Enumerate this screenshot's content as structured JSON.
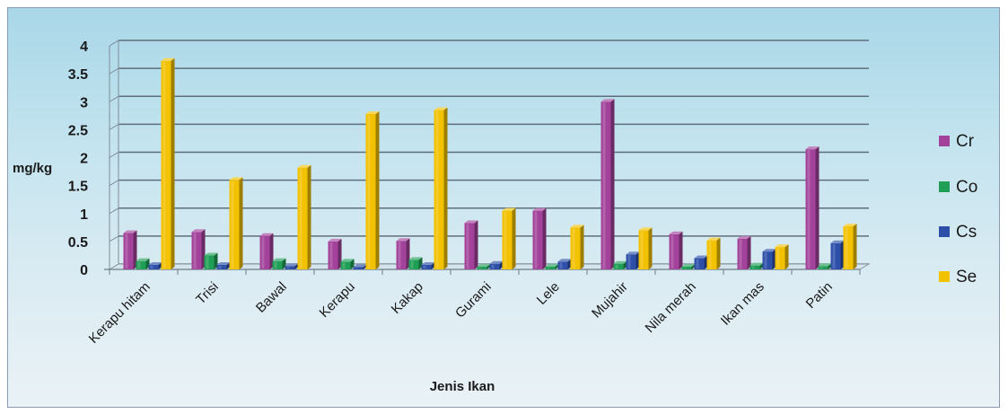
{
  "chart_data": {
    "type": "bar",
    "title": "",
    "xlabel": "Jenis Ikan",
    "ylabel": "mg/kg",
    "ylim": [
      0,
      4
    ],
    "yticks": [
      "0",
      "0.5",
      "1",
      "1.5",
      "2",
      "2.5",
      "3",
      "3.5",
      "4"
    ],
    "grid": true,
    "legend_position": "right",
    "categories": [
      "Kerapu hitam",
      "Trisi",
      "Bawal",
      "Kerapu",
      "Kakap",
      "Gurami",
      "Lele",
      "Mujahir",
      "Nila merah",
      "Ikan mas",
      "Patin"
    ],
    "series": [
      {
        "name": "Cr",
        "color": "#a3429a",
        "values": [
          0.65,
          0.67,
          0.6,
          0.5,
          0.51,
          0.83,
          1.05,
          3.0,
          0.63,
          0.55,
          2.15
        ]
      },
      {
        "name": "Co",
        "color": "#1f9e55",
        "values": [
          0.15,
          0.25,
          0.15,
          0.14,
          0.17,
          0.05,
          0.05,
          0.1,
          0.05,
          0.07,
          0.06
        ]
      },
      {
        "name": "Cs",
        "color": "#2e4fa8",
        "values": [
          0.08,
          0.08,
          0.06,
          0.04,
          0.08,
          0.1,
          0.14,
          0.27,
          0.2,
          0.32,
          0.47
        ]
      },
      {
        "name": "Se",
        "color": "#f2c200",
        "values": [
          3.73,
          1.6,
          1.82,
          2.78,
          2.85,
          1.05,
          0.75,
          0.7,
          0.52,
          0.4,
          0.77
        ]
      }
    ]
  }
}
